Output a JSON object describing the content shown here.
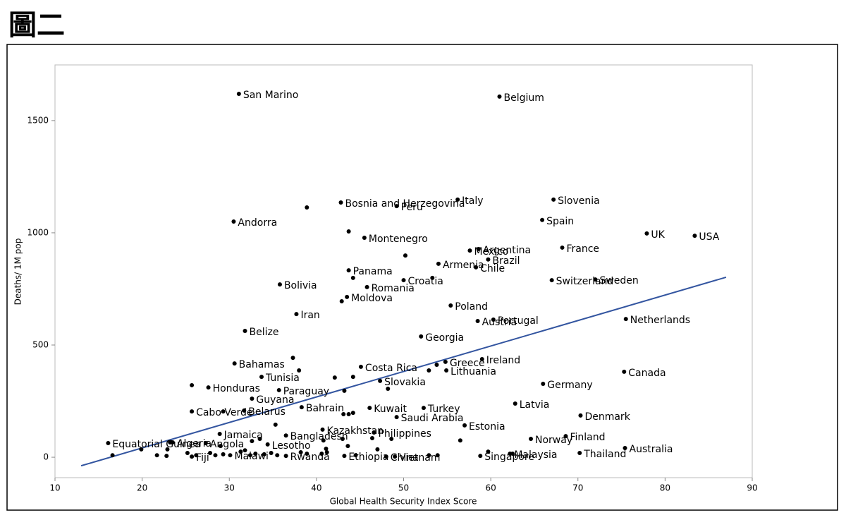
{
  "chart_data": {
    "type": "scatter",
    "title": "圖二",
    "xlabel": "Global Health Security Index Score",
    "ylabel": "Deaths/ 1M pop",
    "xlim": [
      10,
      90
    ],
    "ylim": [
      -91,
      1748
    ],
    "xticks": [
      10,
      20,
      30,
      40,
      50,
      60,
      70,
      80,
      90
    ],
    "yticks": [
      0,
      500,
      1000,
      1500
    ],
    "color": "#000000",
    "x": [
      31.1,
      61.0,
      42.8,
      49.2,
      56.2,
      67.2,
      30.5,
      65.9,
      77.9,
      83.4,
      45.5,
      57.6,
      58.6,
      68.2,
      59.7,
      43.7,
      54.0,
      58.3,
      45.8,
      50.0,
      67.0,
      72.0,
      35.8,
      43.5,
      55.4,
      37.7,
      58.5,
      60.3,
      75.5,
      31.8,
      52.0,
      30.6,
      45.1,
      54.8,
      59.0,
      75.3,
      33.7,
      54.9,
      47.3,
      27.6,
      66.0,
      35.7,
      32.6,
      52.3,
      46.1,
      62.8,
      25.7,
      38.3,
      31.7,
      49.2,
      70.3,
      40.7,
      57.0,
      28.9,
      46.6,
      64.6,
      68.6,
      23.5,
      36.5,
      34.4,
      27.3,
      16.1,
      49.0,
      70.2,
      75.4,
      62.2,
      58.8,
      48.0,
      43.2,
      36.5,
      30.1,
      25.7,
      38.9,
      43.7,
      50.2,
      44.2,
      53.3,
      42.9,
      53.8,
      52.9,
      42.1,
      44.2,
      25.7,
      29.3,
      37.3,
      38.0,
      43.2,
      48.2,
      43.1,
      43.7,
      44.2,
      35.3,
      40.8,
      43.0,
      56.5,
      48.6,
      46.4,
      47.0,
      43.6,
      41.1,
      33.5,
      32.6,
      31.3,
      31.8,
      29.0,
      27.8,
      26.2,
      22.9,
      21.7,
      22.8,
      25.2,
      28.4,
      29.3,
      32.4,
      33.0,
      34.0,
      34.8,
      35.5,
      38.2,
      38.9,
      40.6,
      41.2,
      44.5,
      52.9,
      53.9,
      59.7,
      62.5,
      16.6,
      19.9,
      23.2
    ],
    "values": [
      1619,
      1607,
      1135,
      1119,
      1148,
      1148,
      1050,
      1057,
      997,
      987,
      978,
      921,
      928,
      934,
      881,
      833,
      862,
      846,
      758,
      789,
      789,
      792,
      770,
      714,
      676,
      638,
      607,
      613,
      616,
      563,
      538,
      418,
      403,
      425,
      437,
      381,
      358,
      387,
      340,
      311,
      327,
      299,
      261,
      220,
      220,
      239,
      204,
      223,
      208,
      179,
      186,
      123,
      142,
      104,
      110,
      82,
      94,
      66,
      97,
      57,
      63,
      63,
      3,
      19,
      41,
      16,
      6,
      3,
      6,
      6,
      9,
      3,
      1113,
      1006,
      899,
      799,
      799,
      695,
      412,
      387,
      355,
      358,
      321,
      204,
      443,
      387,
      296,
      305,
      192,
      192,
      198,
      145,
      75,
      82,
      75,
      82,
      85,
      35,
      50,
      38,
      82,
      72,
      25,
      31,
      50,
      19,
      9,
      35,
      9,
      6,
      19,
      9,
      13,
      9,
      16,
      13,
      19,
      9,
      22,
      16,
      16,
      22,
      9,
      9,
      9,
      25,
      16,
      9,
      35,
      66
    ],
    "labels": [
      "San Marino",
      "Belgium",
      "Bosnia and Herzegovina",
      "Peru",
      "Italy",
      "Slovenia",
      "Andorra",
      "Spain",
      "UK",
      "USA",
      "Montenegro",
      "Mexico",
      "Argentina",
      "France",
      "Brazil",
      "Panama",
      "Armenia",
      "Chile",
      "Romania",
      "Croatia",
      "Switzerland",
      "Sweden",
      "Bolivia",
      "Moldova",
      "Poland",
      "Iran",
      "Austria",
      "Portugal",
      "Netherlands",
      "Belize",
      "Georgia",
      "Bahamas",
      "Costa Rica",
      "Greece",
      "Ireland",
      "Canada",
      "Tunisia",
      "Lithuania",
      "Slovakia",
      "Honduras",
      "Germany",
      "Paraguay",
      "Guyana",
      "Turkey",
      "Kuwait",
      "Latvia",
      "Cabo Verde",
      "Bahrain",
      "Belarus",
      "Saudi Arabia",
      "Denmark",
      "Kazakhstan",
      "Estonia",
      "Jamaica",
      "Philippines",
      "Norway",
      "Finland",
      "Algeria",
      "Bangladesh",
      "Lesotho",
      "Angola",
      "Equatorial Guinea",
      "Vietnam",
      "Thailand",
      "Australia",
      "Malaysia",
      "Singapore",
      "China",
      "Ethiopia",
      "Rwanda",
      "Malawi",
      "Fiji",
      null,
      null,
      null,
      null,
      null,
      null,
      null,
      null,
      null,
      null,
      null,
      null,
      null,
      null,
      null,
      null,
      null,
      null,
      null,
      null,
      null,
      null,
      null,
      null,
      null,
      null,
      null,
      null,
      null,
      null,
      null,
      null,
      null,
      null,
      null,
      null,
      null,
      null,
      null,
      null,
      null,
      null,
      null,
      null,
      null,
      null,
      null,
      null,
      null,
      null,
      null,
      null,
      null,
      null,
      null,
      null,
      null,
      null,
      null
    ],
    "fit_line": {
      "x": [
        13,
        87
      ],
      "values": [
        -38,
        802
      ],
      "color": "#3355a0"
    }
  }
}
